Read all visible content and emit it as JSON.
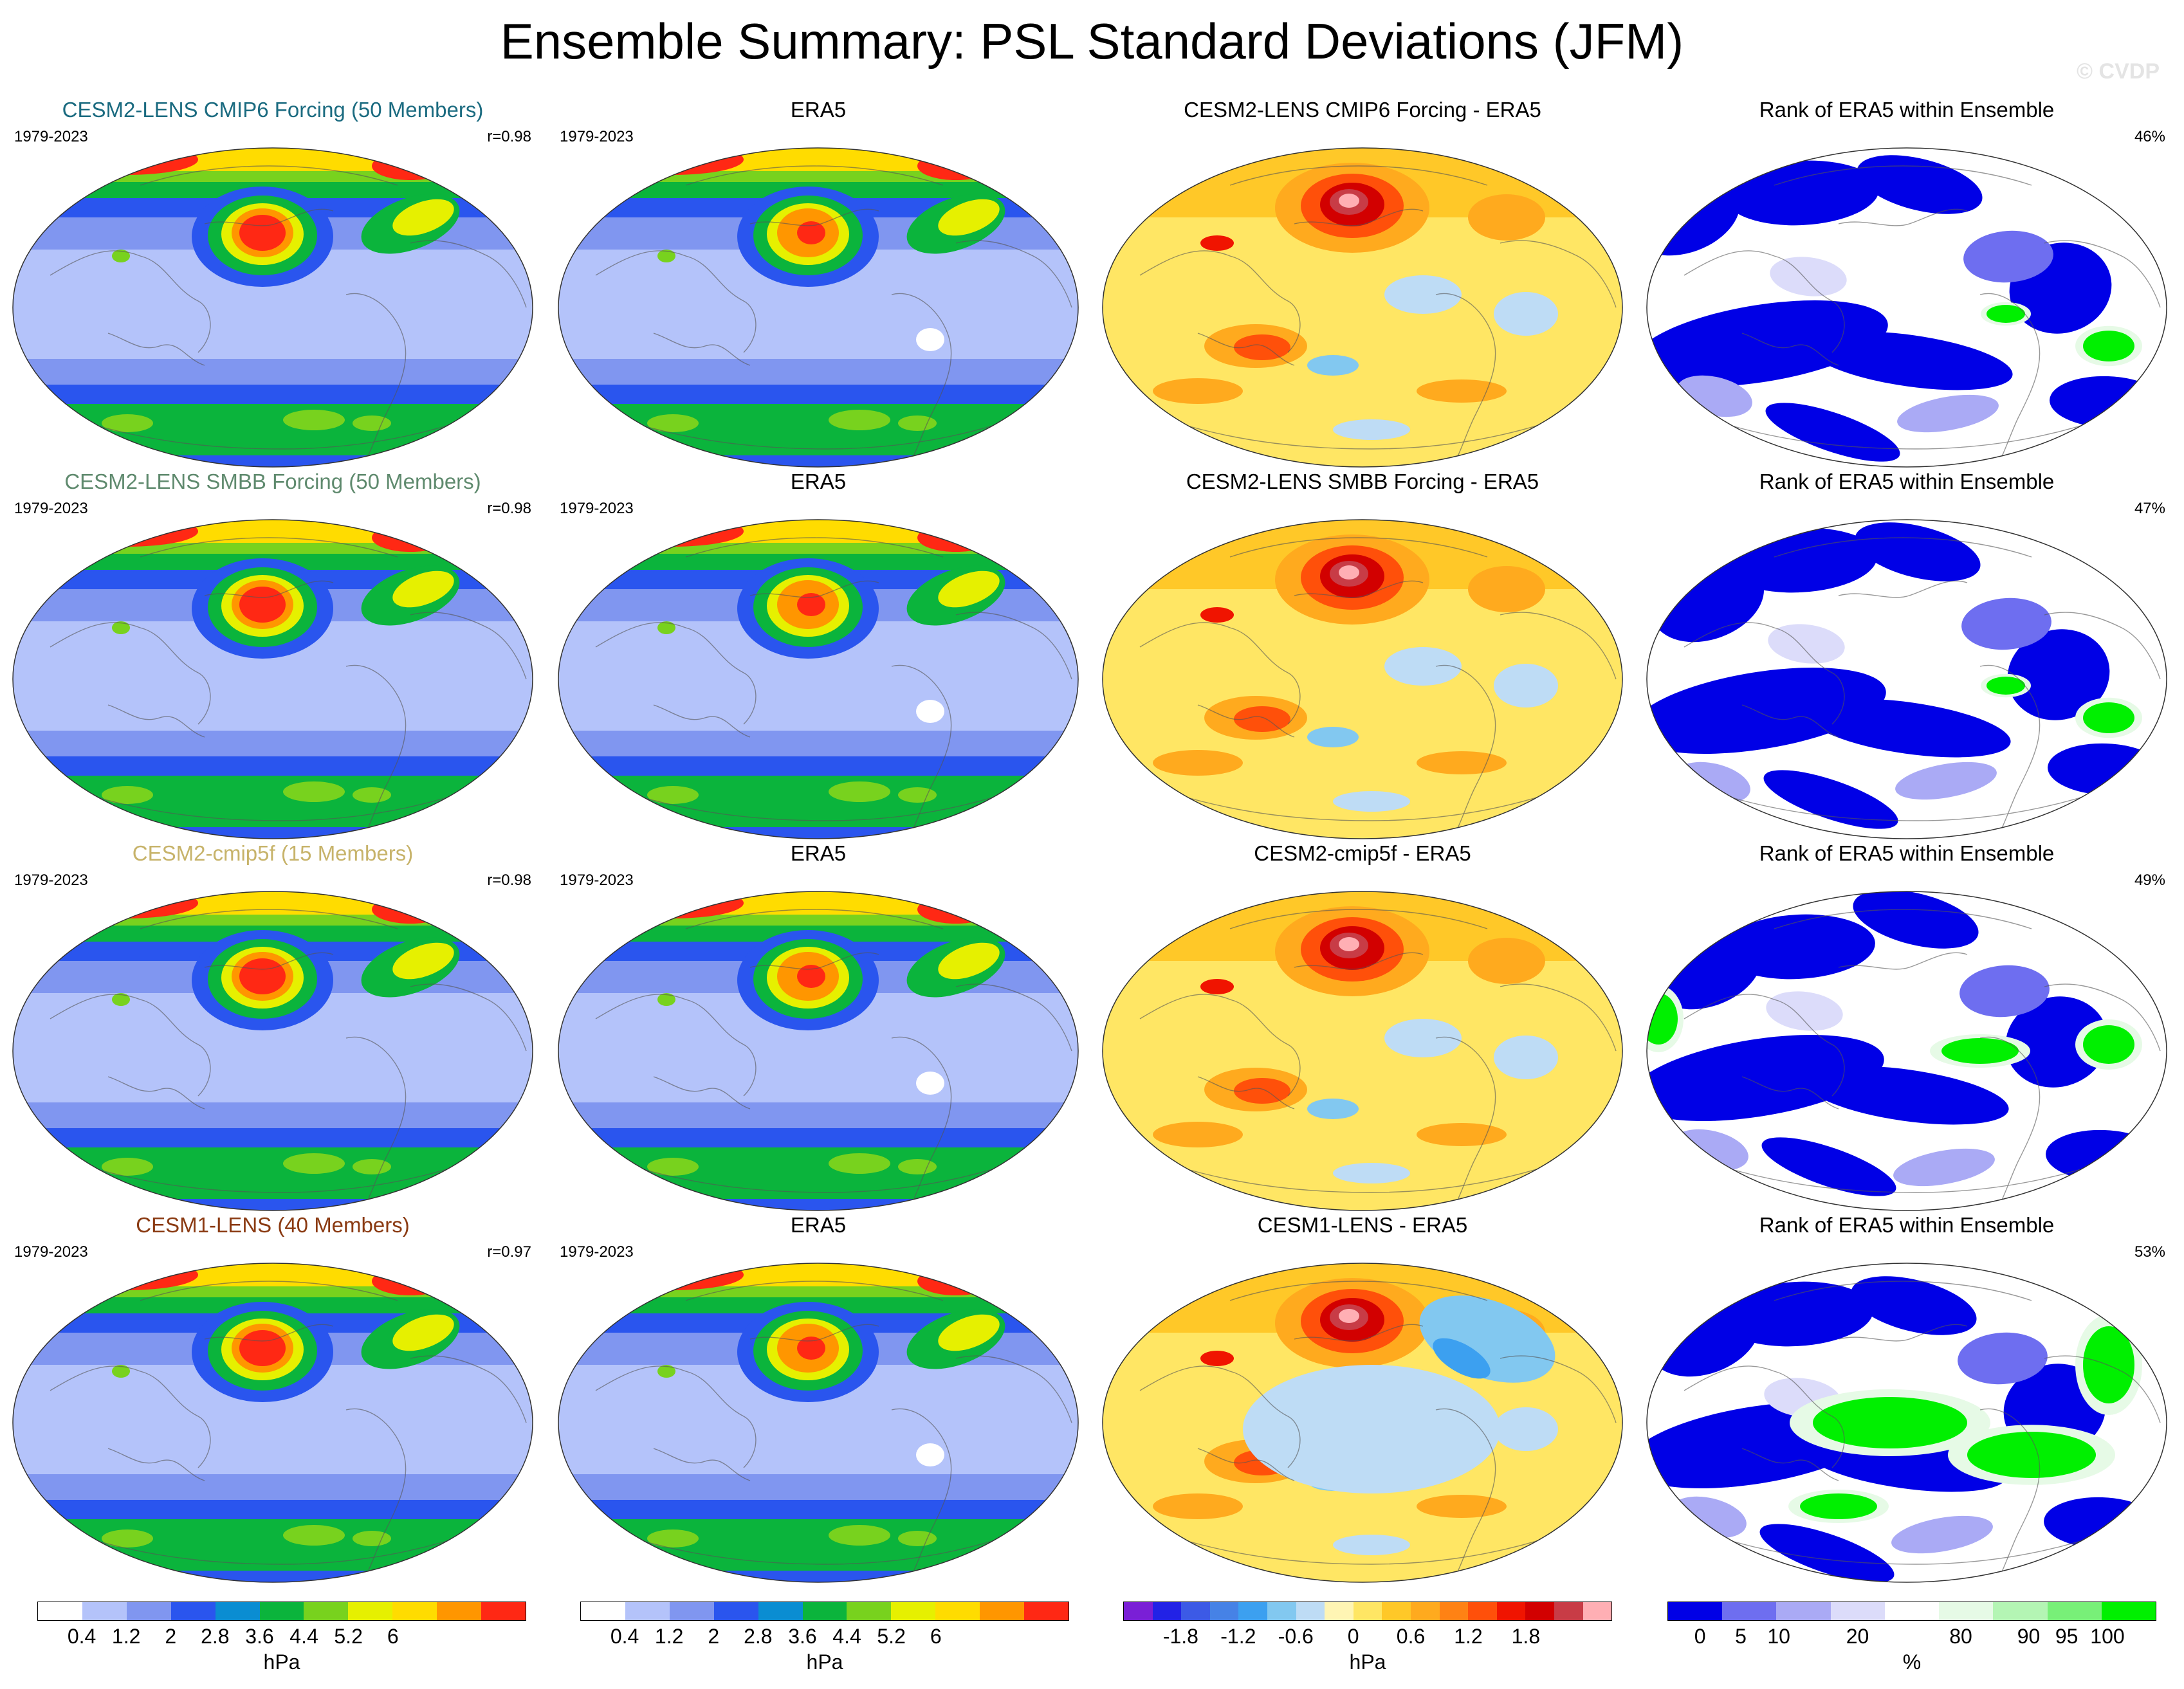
{
  "title": "Ensemble Summary: PSL Standard Deviations (JFM)",
  "watermark": "© CVDP",
  "rows": [
    {
      "model": {
        "title": "CESM2-LENS CMIP6 Forcing (50 Members)",
        "color": "#1b6b80",
        "period": "1979-2023",
        "r": "r=0.98"
      },
      "era5": {
        "title": "ERA5",
        "period": "1979-2023"
      },
      "diff": {
        "title": "CESM2-LENS CMIP6 Forcing - ERA5"
      },
      "rank": {
        "title": "Rank of ERA5 within Ensemble",
        "pct": "46%"
      }
    },
    {
      "model": {
        "title": "CESM2-LENS SMBB Forcing (50 Members)",
        "color": "#5f8a6e",
        "period": "1979-2023",
        "r": "r=0.98"
      },
      "era5": {
        "title": "ERA5",
        "period": "1979-2023"
      },
      "diff": {
        "title": "CESM2-LENS SMBB Forcing - ERA5"
      },
      "rank": {
        "title": "Rank of ERA5 within Ensemble",
        "pct": "47%"
      }
    },
    {
      "model": {
        "title": "CESM2-cmip5f (15 Members)",
        "color": "#c7b36a",
        "period": "1979-2023",
        "r": "r=0.98"
      },
      "era5": {
        "title": "ERA5",
        "period": "1979-2023"
      },
      "diff": {
        "title": "CESM2-cmip5f - ERA5"
      },
      "rank": {
        "title": "Rank of ERA5 within Ensemble",
        "pct": "49%"
      }
    },
    {
      "model": {
        "title": "CESM1-LENS (40 Members)",
        "color": "#8a3a12",
        "period": "1979-2023",
        "r": "r=0.97"
      },
      "era5": {
        "title": "ERA5",
        "period": "1979-2023"
      },
      "diff": {
        "title": "CESM1-LENS - ERA5"
      },
      "rank": {
        "title": "Rank of ERA5 within Ensemble",
        "pct": "53%"
      }
    }
  ],
  "colorbars": [
    {
      "unit": "hPa",
      "colors": [
        "#ffffff",
        "#b4c3fa",
        "#8096f0",
        "#2a55ee",
        "#0a8dd2",
        "#0bb43c",
        "#78d21e",
        "#e6f000",
        "#ffdc00",
        "#ff9600",
        "#ff2814"
      ],
      "ticks": [
        "0.4",
        "1.2",
        "2",
        "2.8",
        "3.6",
        "4.4",
        "5.2",
        "6"
      ]
    },
    {
      "unit": "hPa",
      "colors": [
        "#ffffff",
        "#b4c3fa",
        "#8096f0",
        "#2a55ee",
        "#0a8dd2",
        "#0bb43c",
        "#78d21e",
        "#e6f000",
        "#ffdc00",
        "#ff9600",
        "#ff2814"
      ],
      "ticks": [
        "0.4",
        "1.2",
        "2",
        "2.8",
        "3.6",
        "4.4",
        "5.2",
        "6"
      ]
    },
    {
      "unit": "hPa",
      "colors": [
        "#7a1fd6",
        "#2222e6",
        "#3c5ae6",
        "#4682e6",
        "#3ca0f0",
        "#82c8f0",
        "#bedcf5",
        "#fff5b4",
        "#ffe664",
        "#ffc828",
        "#ffaa1e",
        "#ff8214",
        "#ff500a",
        "#f01400",
        "#d20000",
        "#c83c46",
        "#ffafb4"
      ],
      "ticks": [
        "-1.8",
        "-1.2",
        "-0.6",
        "0",
        "0.6",
        "1.2",
        "1.8"
      ]
    },
    {
      "unit": "%",
      "colors": [
        "#0000e6",
        "#6e6ef0",
        "#aaaaf5",
        "#dcdcfa",
        "#ffffff",
        "#e6fae6",
        "#b4f5b4",
        "#78f078",
        "#00f000"
      ],
      "ticks": [
        "0",
        "5",
        "10",
        "20",
        "80",
        "90",
        "95",
        "100"
      ]
    }
  ]
}
